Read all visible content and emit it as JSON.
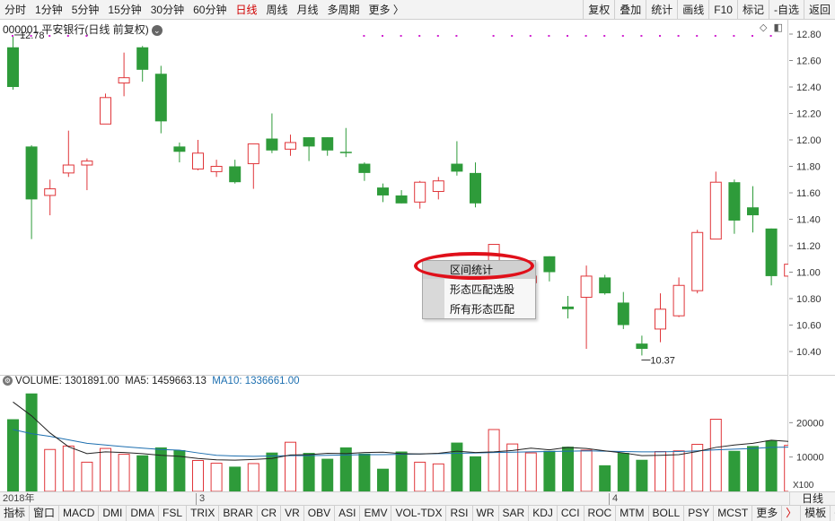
{
  "toolbar": {
    "periods": [
      "分时",
      "1分钟",
      "5分钟",
      "15分钟",
      "30分钟",
      "60分钟",
      "日线",
      "周线",
      "月线",
      "多周期",
      "更多 〉"
    ],
    "active_period": "日线",
    "right_buttons": [
      "复权",
      "叠加",
      "统计",
      "画线",
      "F10",
      "标记",
      "-自选",
      "返回"
    ]
  },
  "stock": {
    "title": "000001 平安银行(日线 前复权)",
    "high_label": "12.78",
    "low_label": "10.37"
  },
  "volume_legend": {
    "volume": "VOLUME: 1301891.00",
    "ma5": "MA5: 1459663.13",
    "ma10": "MA10: 1336661.00"
  },
  "date_axis": {
    "labels": [
      "2018年",
      "3",
      "4"
    ],
    "cycle": "日线"
  },
  "context_menu": {
    "items": [
      "区间统计",
      "形态匹配选股",
      "所有形态匹配"
    ],
    "highlighted": 0
  },
  "tabs": [
    "指标",
    "窗口",
    "MACD",
    "DMI",
    "DMA",
    "FSL",
    "TRIX",
    "BRAR",
    "CR",
    "VR",
    "OBV",
    "ASI",
    "EMV",
    "VOL-TDX",
    "RSI",
    "WR",
    "SAR",
    "KDJ",
    "CCI",
    "ROC",
    "MTM",
    "BOLL",
    "PSY",
    "MCST",
    "更多",
    "〉",
    "模板",
    "+",
    "−"
  ],
  "colors": {
    "up": "#e0363a",
    "down": "#2e9b3a",
    "ma5": "#222222",
    "ma10": "#1d6fb0",
    "active": "#d00000"
  },
  "chart_data": [
    {
      "type": "candlestick",
      "title": "000001 平安银行(日线 前复权)",
      "y_ticks": [
        12.8,
        12.6,
        12.4,
        12.2,
        12.0,
        11.8,
        11.6,
        11.4,
        11.2,
        11.0,
        10.8,
        10.6,
        10.4
      ],
      "ylim": [
        10.3,
        12.85
      ],
      "candles": [
        {
          "o": 12.7,
          "c": 12.4,
          "h": 12.78,
          "l": 12.38
        },
        {
          "o": 11.95,
          "c": 11.55,
          "h": 11.96,
          "l": 11.25
        },
        {
          "o": 11.58,
          "c": 11.63,
          "h": 11.7,
          "l": 11.43
        },
        {
          "o": 11.75,
          "c": 11.81,
          "h": 12.07,
          "l": 11.72
        },
        {
          "o": 11.81,
          "c": 11.84,
          "h": 11.86,
          "l": 11.62
        },
        {
          "o": 12.12,
          "c": 12.32,
          "h": 12.35,
          "l": 12.12
        },
        {
          "o": 12.43,
          "c": 12.47,
          "h": 12.66,
          "l": 12.33
        },
        {
          "o": 12.7,
          "c": 12.53,
          "h": 12.71,
          "l": 12.44
        },
        {
          "o": 12.5,
          "c": 12.14,
          "h": 12.56,
          "l": 12.05
        },
        {
          "o": 11.95,
          "c": 11.91,
          "h": 11.98,
          "l": 11.83
        },
        {
          "o": 11.78,
          "c": 11.9,
          "h": 12.0,
          "l": 11.77
        },
        {
          "o": 11.76,
          "c": 11.8,
          "h": 11.85,
          "l": 11.72
        },
        {
          "o": 11.8,
          "c": 11.68,
          "h": 11.85,
          "l": 11.67
        },
        {
          "o": 11.82,
          "c": 11.97,
          "h": 11.97,
          "l": 11.63
        },
        {
          "o": 12.01,
          "c": 11.92,
          "h": 12.2,
          "l": 11.9
        },
        {
          "o": 11.93,
          "c": 11.98,
          "h": 12.04,
          "l": 11.88
        },
        {
          "o": 12.02,
          "c": 11.95,
          "h": 12.02,
          "l": 11.84
        },
        {
          "o": 12.02,
          "c": 11.92,
          "h": 12.02,
          "l": 11.88
        },
        {
          "o": 11.91,
          "c": 11.9,
          "h": 12.09,
          "l": 11.87
        },
        {
          "o": 11.82,
          "c": 11.75,
          "h": 11.83,
          "l": 11.69
        },
        {
          "o": 11.64,
          "c": 11.58,
          "h": 11.67,
          "l": 11.53
        },
        {
          "o": 11.58,
          "c": 11.52,
          "h": 11.62,
          "l": 11.52
        },
        {
          "o": 11.53,
          "c": 11.68,
          "h": 11.69,
          "l": 11.48
        },
        {
          "o": 11.61,
          "c": 11.69,
          "h": 11.72,
          "l": 11.55
        },
        {
          "o": 11.82,
          "c": 11.76,
          "h": 11.99,
          "l": 11.73
        },
        {
          "o": 11.75,
          "c": 11.52,
          "h": 11.83,
          "l": 11.49
        },
        {
          "o": 11.08,
          "c": 11.21,
          "h": 11.21,
          "l": 11.05
        },
        {
          "o": 10.98,
          "c": 11.04,
          "h": 11.07,
          "l": 10.9
        },
        {
          "o": 10.92,
          "c": 10.97,
          "h": 10.98,
          "l": 10.88
        },
        {
          "o": 11.12,
          "c": 11.0,
          "h": 11.12,
          "l": 10.93
        },
        {
          "o": 10.74,
          "c": 10.72,
          "h": 10.82,
          "l": 10.65
        },
        {
          "o": 10.81,
          "c": 10.97,
          "h": 11.05,
          "l": 10.42
        },
        {
          "o": 10.96,
          "c": 10.84,
          "h": 10.98,
          "l": 10.83
        },
        {
          "o": 10.77,
          "c": 10.6,
          "h": 10.85,
          "l": 10.57
        },
        {
          "o": 10.46,
          "c": 10.42,
          "h": 10.52,
          "l": 10.37
        },
        {
          "o": 10.57,
          "c": 10.72,
          "h": 10.84,
          "l": 10.47
        },
        {
          "o": 10.67,
          "c": 10.9,
          "h": 10.96,
          "l": 10.66
        },
        {
          "o": 10.86,
          "c": 11.3,
          "h": 11.32,
          "l": 10.84
        },
        {
          "o": 11.25,
          "c": 11.68,
          "h": 11.76,
          "l": 11.25
        },
        {
          "o": 11.68,
          "c": 11.39,
          "h": 11.7,
          "l": 11.29
        },
        {
          "o": 11.49,
          "c": 11.43,
          "h": 11.65,
          "l": 11.3
        },
        {
          "o": 11.33,
          "c": 10.97,
          "h": 11.33,
          "l": 10.9
        },
        {
          "o": 10.97,
          "c": 11.06,
          "h": 11.31,
          "l": 10.97
        }
      ]
    },
    {
      "type": "bar",
      "title": "VOLUME",
      "y_ticks": [
        20000,
        10000
      ],
      "ylim": [
        0,
        30000
      ],
      "y_unit": "X100",
      "values": [
        21000,
        28500,
        12200,
        13200,
        8500,
        12500,
        10800,
        10500,
        12800,
        12000,
        9000,
        8200,
        7200,
        8100,
        11300,
        14300,
        11200,
        9500,
        12800,
        11000,
        6600,
        11600,
        8500,
        8000,
        14200,
        10200,
        18000,
        13800,
        11200,
        11800,
        13000,
        12000,
        7600,
        11200,
        9200,
        11600,
        11800,
        13700,
        21000,
        11800,
        13200,
        14800,
        13400
      ],
      "ma5": [
        26000,
        22000,
        17000,
        13000,
        11000,
        11500,
        11300,
        11000,
        10500,
        10200,
        9600,
        9200,
        9100,
        9300,
        9600,
        10600,
        10700,
        11100,
        11000,
        11300,
        11400,
        11000,
        10900,
        11100,
        11700,
        11300,
        11500,
        11900,
        12600,
        12100,
        12800,
        12500,
        11800,
        11200,
        10400,
        10500,
        10700,
        11600,
        12800,
        13500,
        14000,
        14900,
        14500
      ],
      "ma10": [
        18000,
        16800,
        16000,
        15000,
        14000,
        13500,
        13000,
        12600,
        12200,
        12000,
        11200,
        10500,
        10300,
        10200,
        10300,
        10400,
        10400,
        10500,
        10600,
        10700,
        10700,
        10800,
        10900,
        11000,
        11100,
        11200,
        11300,
        11400,
        11500,
        11600,
        11700,
        11800,
        11700,
        11600,
        11500,
        11500,
        11600,
        11800,
        12100,
        12300,
        12500,
        12800,
        12900
      ]
    }
  ]
}
